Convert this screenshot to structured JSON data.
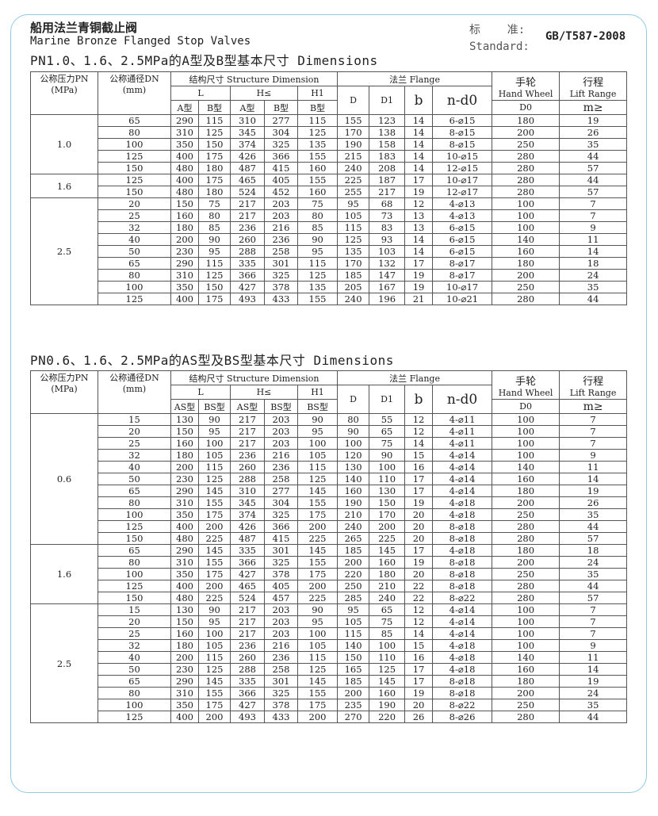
{
  "header": {
    "title_cn": "船用法兰青铜截止阀",
    "title_en": "Marine Bronze Flanged Stop Valves",
    "standard_label_cn": "标    准:",
    "standard_label_en": "Standard:",
    "standard_value": "GB/T587-2008"
  },
  "columns": {
    "pn": "公称压力PN",
    "pn_unit": "(MPa)",
    "dn": "公称通径DN",
    "dn_unit": "(mm)",
    "structure": "结构尺寸 Structure Dimension",
    "L": "L",
    "H": "H≤",
    "H1": "H1",
    "flange": "法兰 Flange",
    "D": "D",
    "D1": "D1",
    "b": "b",
    "nd0": "n-d0",
    "hand_wheel_cn": "手轮",
    "hand_wheel_en": "Hand Wheel",
    "D0": "D0",
    "lift_cn": "行程",
    "lift_en": "Lift Range",
    "m": "m≥"
  },
  "tables": [
    {
      "heading": "PN1.0、1.6、2.5MPa的A型及B型基本尺寸 Dimensions",
      "type_a": "A型",
      "type_b": "B型",
      "groups": [
        {
          "pn": "1.0",
          "rows": [
            [
              "65",
              "290",
              "115",
              "310",
              "277",
              "115",
              "155",
              "123",
              "14",
              "6-⌀15",
              "180",
              "19"
            ],
            [
              "80",
              "310",
              "125",
              "345",
              "304",
              "125",
              "170",
              "138",
              "14",
              "8-⌀15",
              "200",
              "26"
            ],
            [
              "100",
              "350",
              "150",
              "374",
              "325",
              "135",
              "190",
              "158",
              "14",
              "8-⌀15",
              "250",
              "35"
            ],
            [
              "125",
              "400",
              "175",
              "426",
              "366",
              "155",
              "215",
              "183",
              "14",
              "10-⌀15",
              "280",
              "44"
            ],
            [
              "150",
              "480",
              "180",
              "487",
              "415",
              "160",
              "240",
              "208",
              "14",
              "12-⌀15",
              "280",
              "57"
            ]
          ]
        },
        {
          "pn": "1.6",
          "rows": [
            [
              "125",
              "400",
              "175",
              "465",
              "405",
              "155",
              "225",
              "187",
              "17",
              "10-⌀17",
              "280",
              "44"
            ],
            [
              "150",
              "480",
              "180",
              "524",
              "452",
              "160",
              "255",
              "217",
              "19",
              "12-⌀17",
              "280",
              "57"
            ]
          ]
        },
        {
          "pn": "2.5",
          "rows": [
            [
              "20",
              "150",
              "75",
              "217",
              "203",
              "75",
              "95",
              "68",
              "12",
              "4-⌀13",
              "100",
              "7"
            ],
            [
              "25",
              "160",
              "80",
              "217",
              "203",
              "80",
              "105",
              "73",
              "13",
              "4-⌀13",
              "100",
              "7"
            ],
            [
              "32",
              "180",
              "85",
              "236",
              "216",
              "85",
              "115",
              "83",
              "13",
              "6-⌀15",
              "100",
              "9"
            ],
            [
              "40",
              "200",
              "90",
              "260",
              "236",
              "90",
              "125",
              "93",
              "14",
              "6-⌀15",
              "140",
              "11"
            ],
            [
              "50",
              "230",
              "95",
              "288",
              "258",
              "95",
              "135",
              "103",
              "14",
              "6-⌀15",
              "160",
              "14"
            ],
            [
              "65",
              "290",
              "115",
              "335",
              "301",
              "115",
              "170",
              "132",
              "17",
              "8-⌀17",
              "180",
              "18"
            ],
            [
              "80",
              "310",
              "125",
              "366",
              "325",
              "125",
              "185",
              "147",
              "19",
              "8-⌀17",
              "200",
              "24"
            ],
            [
              "100",
              "350",
              "150",
              "427",
              "378",
              "135",
              "205",
              "167",
              "19",
              "10-⌀17",
              "250",
              "35"
            ],
            [
              "125",
              "400",
              "175",
              "493",
              "433",
              "155",
              "240",
              "196",
              "21",
              "10-⌀21",
              "280",
              "44"
            ]
          ]
        }
      ]
    },
    {
      "heading": "PN0.6、1.6、2.5MPa的AS型及BS型基本尺寸 Dimensions",
      "type_a": "AS型",
      "type_b": "BS型",
      "groups": [
        {
          "pn": "0.6",
          "rows": [
            [
              "15",
              "130",
              "90",
              "217",
              "203",
              "90",
              "80",
              "55",
              "12",
              "4-⌀11",
              "100",
              "7"
            ],
            [
              "20",
              "150",
              "95",
              "217",
              "203",
              "95",
              "90",
              "65",
              "12",
              "4-⌀11",
              "100",
              "7"
            ],
            [
              "25",
              "160",
              "100",
              "217",
              "203",
              "100",
              "100",
              "75",
              "14",
              "4-⌀11",
              "100",
              "7"
            ],
            [
              "32",
              "180",
              "105",
              "236",
              "216",
              "105",
              "120",
              "90",
              "15",
              "4-⌀14",
              "100",
              "9"
            ],
            [
              "40",
              "200",
              "115",
              "260",
              "236",
              "115",
              "130",
              "100",
              "16",
              "4-⌀14",
              "140",
              "11"
            ],
            [
              "50",
              "230",
              "125",
              "288",
              "258",
              "125",
              "140",
              "110",
              "17",
              "4-⌀14",
              "160",
              "14"
            ],
            [
              "65",
              "290",
              "145",
              "310",
              "277",
              "145",
              "160",
              "130",
              "17",
              "4-⌀14",
              "180",
              "19"
            ],
            [
              "80",
              "310",
              "155",
              "345",
              "304",
              "155",
              "190",
              "150",
              "19",
              "4-⌀18",
              "200",
              "26"
            ],
            [
              "100",
              "350",
              "175",
              "374",
              "325",
              "175",
              "210",
              "170",
              "20",
              "4-⌀18",
              "250",
              "35"
            ],
            [
              "125",
              "400",
              "200",
              "426",
              "366",
              "200",
              "240",
              "200",
              "20",
              "8-⌀18",
              "280",
              "44"
            ],
            [
              "150",
              "480",
              "225",
              "487",
              "415",
              "225",
              "265",
              "225",
              "20",
              "8-⌀18",
              "280",
              "57"
            ]
          ]
        },
        {
          "pn": "1.6",
          "rows": [
            [
              "65",
              "290",
              "145",
              "335",
              "301",
              "145",
              "185",
              "145",
              "17",
              "4-⌀18",
              "180",
              "18"
            ],
            [
              "80",
              "310",
              "155",
              "366",
              "325",
              "155",
              "200",
              "160",
              "19",
              "8-⌀18",
              "200",
              "24"
            ],
            [
              "100",
              "350",
              "175",
              "427",
              "378",
              "175",
              "220",
              "180",
              "20",
              "8-⌀18",
              "250",
              "35"
            ],
            [
              "125",
              "400",
              "200",
              "465",
              "405",
              "200",
              "250",
              "210",
              "22",
              "8-⌀18",
              "280",
              "44"
            ],
            [
              "150",
              "480",
              "225",
              "524",
              "457",
              "225",
              "285",
              "240",
              "22",
              "8-⌀22",
              "280",
              "57"
            ]
          ]
        },
        {
          "pn": "2.5",
          "rows": [
            [
              "15",
              "130",
              "90",
              "217",
              "203",
              "90",
              "95",
              "65",
              "12",
              "4-⌀14",
              "100",
              "7"
            ],
            [
              "20",
              "150",
              "95",
              "217",
              "203",
              "95",
              "105",
              "75",
              "12",
              "4-⌀14",
              "100",
              "7"
            ],
            [
              "25",
              "160",
              "100",
              "217",
              "203",
              "100",
              "115",
              "85",
              "14",
              "4-⌀14",
              "100",
              "7"
            ],
            [
              "32",
              "180",
              "105",
              "236",
              "216",
              "105",
              "140",
              "100",
              "15",
              "4-⌀18",
              "100",
              "9"
            ],
            [
              "40",
              "200",
              "115",
              "260",
              "236",
              "115",
              "150",
              "110",
              "16",
              "4-⌀18",
              "140",
              "11"
            ],
            [
              "50",
              "230",
              "125",
              "288",
              "258",
              "125",
              "165",
              "125",
              "17",
              "4-⌀18",
              "160",
              "14"
            ],
            [
              "65",
              "290",
              "145",
              "335",
              "301",
              "145",
              "185",
              "145",
              "17",
              "8-⌀18",
              "180",
              "19"
            ],
            [
              "80",
              "310",
              "155",
              "366",
              "325",
              "155",
              "200",
              "160",
              "19",
              "8-⌀18",
              "200",
              "24"
            ],
            [
              "100",
              "350",
              "175",
              "427",
              "378",
              "175",
              "235",
              "190",
              "20",
              "8-⌀22",
              "250",
              "35"
            ],
            [
              "125",
              "400",
              "200",
              "493",
              "433",
              "200",
              "270",
              "220",
              "26",
              "8-⌀26",
              "280",
              "44"
            ]
          ]
        }
      ]
    }
  ]
}
